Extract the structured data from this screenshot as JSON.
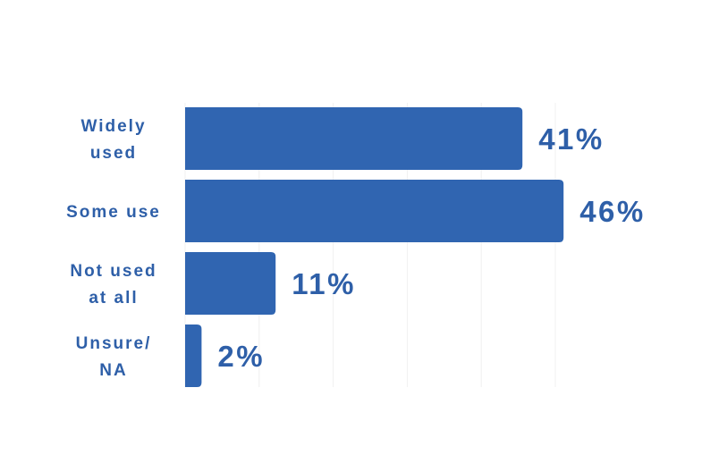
{
  "chart_data": {
    "type": "bar",
    "orientation": "horizontal",
    "categories": [
      [
        "Widely",
        "used"
      ],
      [
        "Some use"
      ],
      [
        "Not used",
        "at all"
      ],
      [
        "Unsure/",
        "NA"
      ]
    ],
    "values": [
      41,
      46,
      11,
      2
    ],
    "value_labels": [
      "41%",
      "46%",
      "11%",
      "2%"
    ],
    "xlim": [
      0,
      50
    ],
    "grid": true,
    "legend": "none",
    "colors": {
      "bar": "#3065B1",
      "text": "#2E5FA8",
      "grid": "#F0F0F0"
    }
  }
}
